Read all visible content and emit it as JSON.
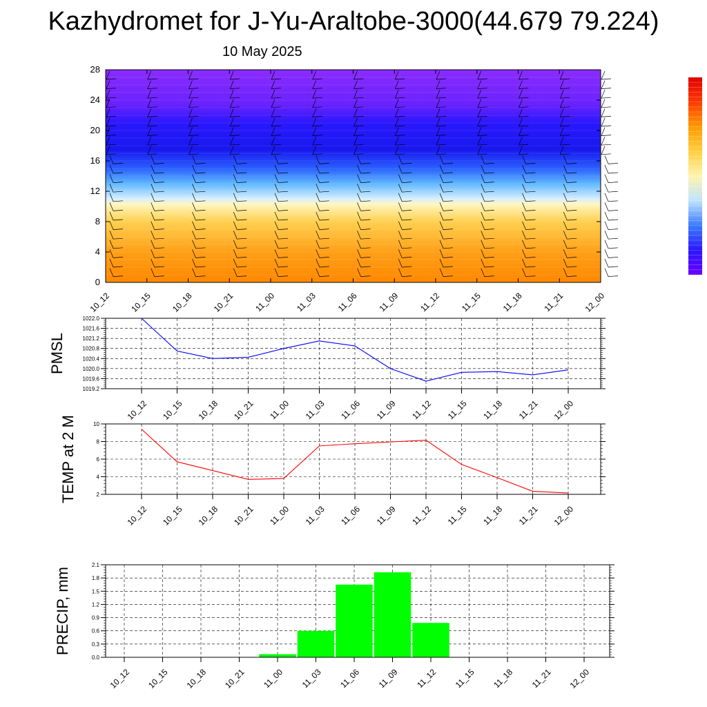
{
  "title": "Kazhydromet for J-Yu-Araltobe-3000(44.679 79.224)",
  "subtitle": "10 May 2025",
  "colors": {
    "pmsl_line": "#0000ff",
    "temp_line": "#ff0000",
    "precip_bar": "#00ff00",
    "grid": "#000000"
  },
  "colorbar": {
    "stops": [
      "#6a00ff",
      "#2a16ff",
      "#3a7bff",
      "#bfe3ff",
      "#fff3b0",
      "#ffcf40",
      "#ff9a00",
      "#ff3a00",
      "#e00000"
    ]
  },
  "chart_data": [
    {
      "type": "heatmap",
      "title": "",
      "xlabel": "",
      "ylabel": "",
      "x": [
        "10_12",
        "10_15",
        "10_18",
        "10_21",
        "11_00",
        "11_03",
        "11_06",
        "11_09",
        "11_12",
        "11_15",
        "11_18",
        "11_21",
        "12_00"
      ],
      "yticks": [
        0,
        4,
        8,
        12,
        16,
        20,
        24,
        28
      ],
      "ylim": [
        0,
        28
      ],
      "color_bands": [
        {
          "y": 0,
          "color": "#ff8800"
        },
        {
          "y": 4,
          "color": "#ffa018"
        },
        {
          "y": 8,
          "color": "#ffd050"
        },
        {
          "y": 10.3,
          "color": "#fff6c0"
        },
        {
          "y": 11,
          "color": "#d8efff"
        },
        {
          "y": 13,
          "color": "#60b8ff"
        },
        {
          "y": 15,
          "color": "#2a60ff"
        },
        {
          "y": 17.5,
          "color": "#1818ee"
        },
        {
          "y": 21,
          "color": "#2a18ff"
        },
        {
          "y": 23.5,
          "color": "#6a22ff"
        },
        {
          "y": 28,
          "color": "#8a2cff"
        }
      ],
      "wind_barbs": true
    },
    {
      "type": "line",
      "title": "",
      "xlabel": "",
      "ylabel": "PMSL",
      "x": [
        "10_12",
        "10_15",
        "10_18",
        "10_21",
        "11_00",
        "11_03",
        "11_06",
        "11_09",
        "11_12",
        "11_15",
        "11_18",
        "11_21",
        "12_00"
      ],
      "values": [
        1022.0,
        1020.7,
        1020.4,
        1020.45,
        1020.8,
        1021.1,
        1020.9,
        1020.0,
        1019.5,
        1019.85,
        1019.88,
        1019.75,
        1019.95
      ],
      "yticks": [
        "1022.0",
        "1021.6",
        "1021.2",
        "1020.8",
        "1020.4",
        "1020.0",
        "1019.6",
        "1019.2"
      ],
      "ylim": [
        1019.2,
        1022.0
      ],
      "grid": true
    },
    {
      "type": "line",
      "title": "",
      "xlabel": "",
      "ylabel": "TEMP at 2 M",
      "x": [
        "10_12",
        "10_15",
        "10_18",
        "10_21",
        "11_00",
        "11_03",
        "11_06",
        "11_09",
        "11_12",
        "11_15",
        "11_18",
        "11_21",
        "12_00"
      ],
      "values": [
        9.4,
        5.7,
        4.7,
        3.7,
        3.8,
        7.5,
        7.75,
        7.95,
        8.15,
        5.4,
        3.9,
        2.35,
        2.15
      ],
      "yticks": [
        "10",
        "8",
        "6",
        "4",
        "2"
      ],
      "ylim": [
        2,
        10
      ],
      "grid": true
    },
    {
      "type": "bar",
      "title": "",
      "xlabel": "",
      "ylabel": "PRECIP, mm",
      "categories": [
        "10_12",
        "10_15",
        "10_18",
        "10_21",
        "11_00",
        "11_03",
        "11_06",
        "11_09",
        "11_12",
        "11_15",
        "11_18",
        "11_21",
        "12_00"
      ],
      "values": [
        0,
        0,
        0,
        0,
        0.07,
        0.6,
        1.65,
        1.93,
        0.78,
        0,
        0,
        0,
        0
      ],
      "yticks": [
        "2.1",
        "1.8",
        "1.5",
        "1.2",
        "0.9",
        "0.6",
        "0.3",
        "0.0"
      ],
      "ylim": [
        0,
        2.1
      ],
      "grid": true
    }
  ]
}
